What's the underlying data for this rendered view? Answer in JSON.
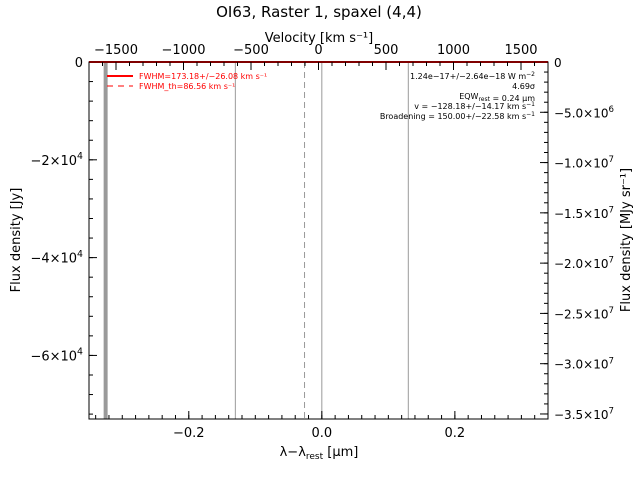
{
  "chart_data": {
    "type": "line",
    "title": "OI63, Raster 1, spaxel (4,4)",
    "top_axis": {
      "label": "Velocity [km s⁻¹]",
      "range": [
        -1700,
        1700
      ],
      "ticks": [
        -1500,
        -1000,
        -500,
        0,
        500,
        1000,
        1500
      ],
      "tick_labels": [
        "−1500",
        "−1000",
        "−500",
        "0",
        "500",
        "1000",
        "1500"
      ]
    },
    "x_axis": {
      "label": "λ−λ",
      "label_sub": "rest",
      "label_unit": " [μm]",
      "range": [
        -0.35,
        0.34
      ],
      "ticks": [
        -0.2,
        0.0,
        0.2
      ],
      "tick_labels": [
        "−0.2",
        "0.0",
        "0.2"
      ]
    },
    "left_axis": {
      "label": "Flux density [Jy]",
      "range": [
        -73000,
        0
      ],
      "ticks": [
        0,
        -20000,
        -40000,
        -60000
      ],
      "tick_labels": [
        {
          "base": "0",
          "exp": ""
        },
        {
          "base": "−2×10",
          "exp": "4"
        },
        {
          "base": "−4×10",
          "exp": "4"
        },
        {
          "base": "−6×10",
          "exp": "4"
        }
      ]
    },
    "right_axis": {
      "label": "Flux density [MJy sr⁻¹]",
      "range": [
        -35500000,
        0
      ],
      "ticks": [
        0,
        -5000000,
        -10000000,
        -15000000,
        -20000000,
        -25000000,
        -30000000,
        -35000000
      ],
      "tick_labels": [
        {
          "base": "0",
          "exp": ""
        },
        {
          "base": "−5.0×10",
          "exp": "6"
        },
        {
          "base": "−1.0×10",
          "exp": "7"
        },
        {
          "base": "−1.5×10",
          "exp": "7"
        },
        {
          "base": "−2.0×10",
          "exp": "7"
        },
        {
          "base": "−2.5×10",
          "exp": "7"
        },
        {
          "base": "−3.0×10",
          "exp": "7"
        },
        {
          "base": "−3.5×10",
          "exp": "7"
        }
      ]
    },
    "series": [
      {
        "name": "FWHM=173.18+/−26.08 km s⁻¹",
        "color": "#ff0000",
        "style": "solid",
        "x": [
          -0.35,
          0.34
        ],
        "y": [
          0,
          0
        ]
      },
      {
        "name": "FWHM_th=86.56 km s⁻¹",
        "color": "#ff0000",
        "style": "dashed",
        "x": [],
        "y": []
      }
    ],
    "vertical_lines": [
      {
        "x": -0.325,
        "color": "#9a9a9a",
        "style": "solid",
        "weight": "thick"
      },
      {
        "x": -0.13,
        "color": "#9a9a9a",
        "style": "solid",
        "weight": "thin"
      },
      {
        "x": -0.026,
        "color": "#9a9a9a",
        "style": "dashed",
        "weight": "thin"
      },
      {
        "x": 0.0,
        "color": "#9a9a9a",
        "style": "solid",
        "weight": "thin"
      },
      {
        "x": 0.13,
        "color": "#9a9a9a",
        "style": "solid",
        "weight": "thin"
      }
    ],
    "annotations": [
      {
        "parts": [
          {
            "t": "1.24e−17+/−2.64e−18 W m"
          },
          {
            "t": "−2",
            "sup": true
          }
        ]
      },
      {
        "parts": [
          {
            "t": "4.69σ"
          }
        ]
      },
      {
        "parts": [
          {
            "t": "EQW"
          },
          {
            "t": "rest",
            "sub": true
          },
          {
            "t": " = 0.24 μm"
          }
        ]
      },
      {
        "parts": [
          {
            "t": "v = −128.18+/−14.17 km s"
          },
          {
            "t": "−1",
            "sup": true
          }
        ]
      },
      {
        "parts": [
          {
            "t": "Broadening = 150.00+/−22.58 km s"
          },
          {
            "t": "−1",
            "sup": true
          }
        ]
      }
    ],
    "legend_position": "top-left",
    "grid": false
  }
}
